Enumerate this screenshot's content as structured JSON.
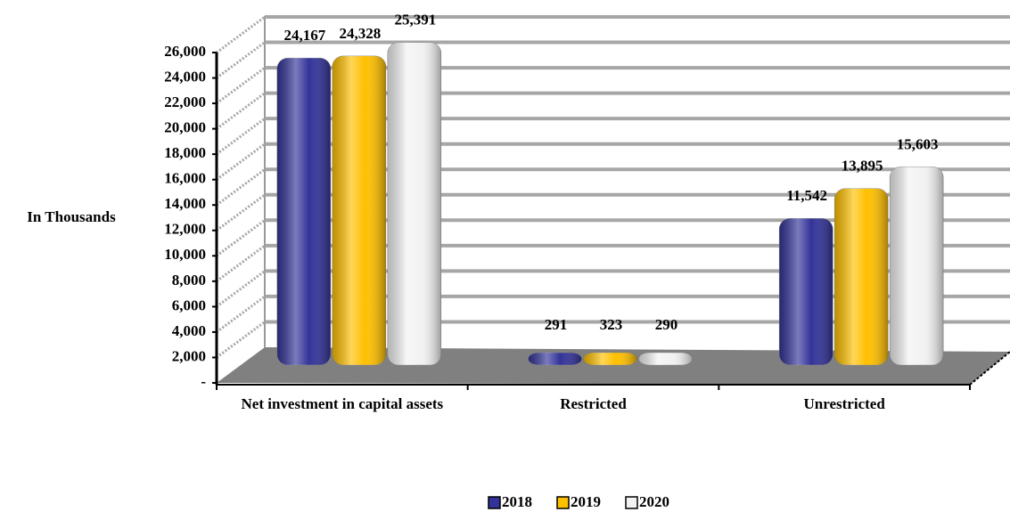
{
  "chart_data": {
    "type": "bar3d",
    "y_axis_label": "In Thousands",
    "categories": [
      "Net investment in capital assets",
      "Restricted",
      "Unrestricted"
    ],
    "series": [
      {
        "name": "2018",
        "color": "#333399",
        "values": [
          24167,
          291,
          11542
        ],
        "value_labels": [
          "24,167",
          "291",
          "11,542"
        ]
      },
      {
        "name": "2019",
        "color": "#ffc000",
        "values": [
          24328,
          323,
          13895
        ],
        "value_labels": [
          "24,328",
          "323",
          "13,895"
        ]
      },
      {
        "name": "2020",
        "color": "#f2f2f2",
        "values": [
          25391,
          290,
          15603
        ],
        "value_labels": [
          "25,391",
          "290",
          "15,603"
        ]
      }
    ],
    "ylim": [
      0,
      26000
    ],
    "yticks": [
      {
        "value": 0,
        "label": "-"
      },
      {
        "value": 2000,
        "label": "2,000"
      },
      {
        "value": 4000,
        "label": "4,000"
      },
      {
        "value": 6000,
        "label": "6,000"
      },
      {
        "value": 8000,
        "label": "8,000"
      },
      {
        "value": 10000,
        "label": "10,000"
      },
      {
        "value": 12000,
        "label": "12,000"
      },
      {
        "value": 14000,
        "label": "14,000"
      },
      {
        "value": 16000,
        "label": "16,000"
      },
      {
        "value": 18000,
        "label": "18,000"
      },
      {
        "value": 20000,
        "label": "20,000"
      },
      {
        "value": 22000,
        "label": "22,000"
      },
      {
        "value": 24000,
        "label": "24,000"
      },
      {
        "value": 26000,
        "label": "26,000"
      }
    ],
    "grid": true,
    "legend": "bottom"
  }
}
